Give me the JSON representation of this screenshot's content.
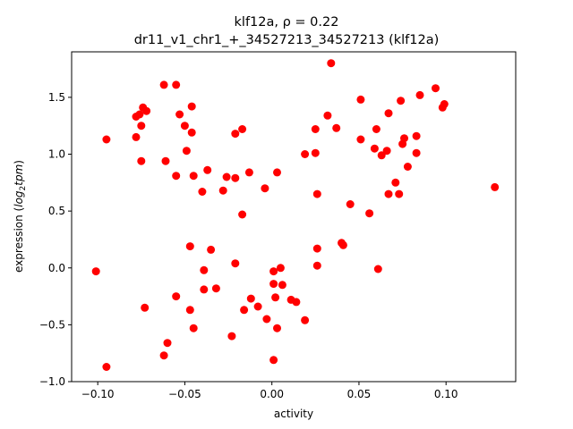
{
  "chart_data": {
    "type": "scatter",
    "title_line1": "klf12a, ρ = 0.22",
    "title_line2": "dr11_v1_chr1_+_34527213_34527213 (klf12a)",
    "xlabel": "activity",
    "ylabel_prefix": "expression (",
    "ylabel_math": "log",
    "ylabel_sub": "2",
    "ylabel_math2": "tpm",
    "ylabel_suffix": ")",
    "xlim": [
      -0.115,
      0.14
    ],
    "ylim": [
      -1.0,
      1.9
    ],
    "xticks": [
      -0.1,
      -0.05,
      0.0,
      0.05,
      0.1
    ],
    "xtick_labels": [
      "−0.10",
      "−0.05",
      "0.00",
      "0.05",
      "0.10"
    ],
    "yticks": [
      -1.0,
      -0.5,
      0.0,
      0.5,
      1.0,
      1.5
    ],
    "ytick_labels": [
      "−1.0",
      "−0.5",
      "0.0",
      "0.5",
      "1.0",
      "1.5"
    ],
    "marker_color": "#ff0000",
    "grid": false,
    "points": [
      [
        -0.101,
        -0.03
      ],
      [
        -0.095,
        -0.87
      ],
      [
        -0.095,
        1.13
      ],
      [
        -0.078,
        1.33
      ],
      [
        -0.078,
        1.15
      ],
      [
        -0.076,
        1.35
      ],
      [
        -0.075,
        0.94
      ],
      [
        -0.075,
        1.25
      ],
      [
        -0.074,
        1.41
      ],
      [
        -0.072,
        1.38
      ],
      [
        -0.073,
        -0.35
      ],
      [
        -0.062,
        -0.77
      ],
      [
        -0.062,
        1.61
      ],
      [
        -0.061,
        0.94
      ],
      [
        -0.06,
        -0.66
      ],
      [
        -0.055,
        1.61
      ],
      [
        -0.055,
        -0.25
      ],
      [
        -0.055,
        0.81
      ],
      [
        -0.053,
        1.35
      ],
      [
        -0.05,
        1.25
      ],
      [
        -0.049,
        1.03
      ],
      [
        -0.047,
        0.19
      ],
      [
        -0.047,
        -0.37
      ],
      [
        -0.046,
        1.19
      ],
      [
        -0.046,
        1.42
      ],
      [
        -0.045,
        -0.53
      ],
      [
        -0.045,
        0.81
      ],
      [
        -0.04,
        0.67
      ],
      [
        -0.039,
        -0.02
      ],
      [
        -0.039,
        -0.19
      ],
      [
        -0.037,
        0.86
      ],
      [
        -0.035,
        0.16
      ],
      [
        -0.032,
        -0.18
      ],
      [
        -0.028,
        0.68
      ],
      [
        -0.026,
        0.8
      ],
      [
        -0.023,
        -0.6
      ],
      [
        -0.021,
        1.18
      ],
      [
        -0.021,
        0.79
      ],
      [
        -0.021,
        0.04
      ],
      [
        -0.017,
        0.47
      ],
      [
        -0.017,
        1.22
      ],
      [
        -0.016,
        -0.37
      ],
      [
        -0.013,
        0.84
      ],
      [
        -0.012,
        -0.27
      ],
      [
        -0.008,
        -0.34
      ],
      [
        -0.004,
        0.7
      ],
      [
        -0.003,
        -0.45
      ],
      [
        0.001,
        -0.81
      ],
      [
        0.001,
        -0.03
      ],
      [
        0.001,
        -0.14
      ],
      [
        0.002,
        -0.26
      ],
      [
        0.003,
        -0.53
      ],
      [
        0.003,
        0.84
      ],
      [
        0.005,
        0.0
      ],
      [
        0.006,
        -0.15
      ],
      [
        0.011,
        -0.28
      ],
      [
        0.014,
        -0.3
      ],
      [
        0.019,
        -0.46
      ],
      [
        0.019,
        1.0
      ],
      [
        0.025,
        1.22
      ],
      [
        0.025,
        1.01
      ],
      [
        0.026,
        0.65
      ],
      [
        0.026,
        0.17
      ],
      [
        0.026,
        0.02
      ],
      [
        0.032,
        1.34
      ],
      [
        0.034,
        1.8
      ],
      [
        0.037,
        1.23
      ],
      [
        0.04,
        0.22
      ],
      [
        0.041,
        0.2
      ],
      [
        0.045,
        0.56
      ],
      [
        0.051,
        1.13
      ],
      [
        0.051,
        1.48
      ],
      [
        0.056,
        0.48
      ],
      [
        0.059,
        1.05
      ],
      [
        0.06,
        1.22
      ],
      [
        0.061,
        -0.01
      ],
      [
        0.063,
        0.99
      ],
      [
        0.066,
        1.03
      ],
      [
        0.067,
        1.36
      ],
      [
        0.067,
        0.65
      ],
      [
        0.071,
        0.75
      ],
      [
        0.073,
        0.65
      ],
      [
        0.074,
        1.47
      ],
      [
        0.075,
        1.09
      ],
      [
        0.076,
        1.14
      ],
      [
        0.078,
        0.89
      ],
      [
        0.083,
        1.01
      ],
      [
        0.083,
        1.16
      ],
      [
        0.085,
        1.52
      ],
      [
        0.094,
        1.58
      ],
      [
        0.098,
        1.41
      ],
      [
        0.099,
        1.44
      ],
      [
        0.128,
        0.71
      ]
    ]
  }
}
